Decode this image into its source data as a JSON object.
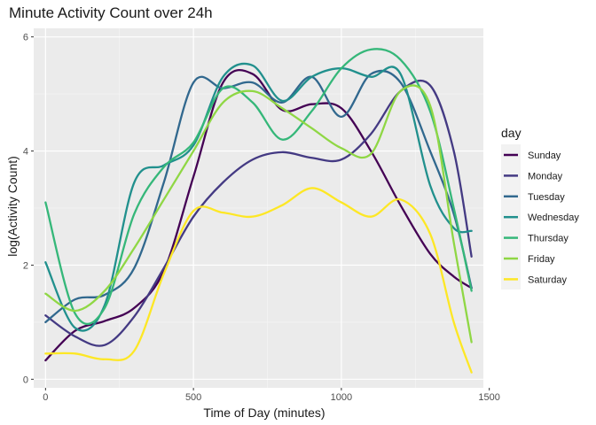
{
  "chart_data": {
    "type": "line",
    "title": "Minute Activity Count over 24h",
    "xlabel": "Time of Day (minutes)",
    "ylabel": "log(Activity Count)",
    "xlim": [
      -40,
      1480
    ],
    "ylim": [
      -0.15,
      6.15
    ],
    "xticks": [
      0,
      500,
      1000,
      1500
    ],
    "yticks": [
      0,
      2,
      4,
      6
    ],
    "grid": true,
    "legend": {
      "title": "day",
      "position": "right"
    },
    "x": [
      0,
      100,
      200,
      300,
      400,
      500,
      600,
      700,
      800,
      900,
      1000,
      1100,
      1200,
      1300,
      1380,
      1440
    ],
    "series": [
      {
        "name": "Sunday",
        "color": "#440154",
        "values": [
          0.33,
          0.85,
          1.02,
          1.25,
          1.9,
          3.55,
          5.2,
          5.35,
          4.72,
          4.82,
          4.75,
          4.0,
          3.05,
          2.2,
          1.8,
          1.6
        ]
      },
      {
        "name": "Monday",
        "color": "#443A83",
        "values": [
          1.12,
          0.75,
          0.6,
          1.1,
          1.95,
          2.85,
          3.45,
          3.85,
          3.98,
          3.88,
          3.85,
          4.3,
          5.05,
          5.15,
          4.0,
          2.15
        ]
      },
      {
        "name": "Tuesday",
        "color": "#31688E",
        "values": [
          1.0,
          1.4,
          1.48,
          1.95,
          3.45,
          5.2,
          5.1,
          5.2,
          4.85,
          5.3,
          4.6,
          5.35,
          5.2,
          4.0,
          2.9,
          1.6
        ]
      },
      {
        "name": "Wednesday",
        "color": "#21908D",
        "values": [
          2.05,
          0.9,
          1.3,
          3.45,
          3.75,
          4.1,
          5.3,
          5.5,
          4.88,
          5.3,
          5.45,
          5.3,
          5.35,
          3.4,
          2.65,
          2.6
        ]
      },
      {
        "name": "Thursday",
        "color": "#35B779",
        "values": [
          3.1,
          1.15,
          1.25,
          2.9,
          3.72,
          4.15,
          5.1,
          4.85,
          4.2,
          4.7,
          5.45,
          5.78,
          5.6,
          4.7,
          3.0,
          1.55
        ]
      },
      {
        "name": "Friday",
        "color": "#8FD744",
        "values": [
          1.5,
          1.2,
          1.55,
          2.3,
          3.15,
          4.0,
          4.85,
          5.05,
          4.75,
          4.4,
          4.05,
          3.95,
          5.05,
          4.8,
          2.4,
          0.65
        ]
      },
      {
        "name": "Saturday",
        "color": "#FDE725",
        "values": [
          0.45,
          0.45,
          0.35,
          0.5,
          1.85,
          2.95,
          2.92,
          2.85,
          3.05,
          3.35,
          3.1,
          2.85,
          3.15,
          2.55,
          1.0,
          0.12
        ]
      }
    ]
  }
}
